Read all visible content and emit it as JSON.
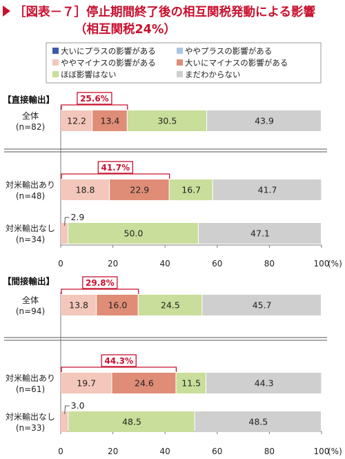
{
  "title": {
    "line1": "［図表－７］停止期間終了後の相互関税発動による影響",
    "line2": "（相互関税24%）"
  },
  "chart_data": {
    "type": "bar",
    "stacked": true,
    "orientation": "horizontal",
    "unit": "(%)",
    "xlim": [
      0,
      100
    ],
    "xticks": [
      "0",
      "20",
      "40",
      "60",
      "80",
      "100"
    ],
    "legend": [
      {
        "name": "大いにプラスの影響がある",
        "color": "#3d5aa6"
      },
      {
        "name": "ややプラスの影響がある",
        "color": "#a9c6e6"
      },
      {
        "name": "ややマイナスの影響がある",
        "color": "#f3c7bb"
      },
      {
        "name": "大いにマイナスの影響がある",
        "color": "#df8d77"
      },
      {
        "name": "ほぼ影響はない",
        "color": "#c9de9a"
      },
      {
        "name": "まだわからない",
        "color": "#cfcfcf"
      }
    ],
    "panels": [
      {
        "header": "【直接輸出】",
        "rows": [
          {
            "label1": "全体",
            "label2": "(n=82)",
            "values": [
              0,
              0,
              12.2,
              13.4,
              30.5,
              43.9
            ],
            "labels": [
              "",
              "",
              "12.2",
              "13.4",
              "30.5",
              "43.9"
            ],
            "bracket": "25.6%"
          },
          {
            "label1": "対米輸出あり",
            "label2": "(n=48)",
            "values": [
              0,
              0,
              18.8,
              22.9,
              16.7,
              41.7
            ],
            "labels": [
              "",
              "",
              "18.8",
              "22.9",
              "16.7",
              "41.7"
            ],
            "bracket": "41.7%"
          },
          {
            "label1": "対米輸出なし",
            "label2": "(n=34)",
            "values": [
              0,
              0,
              2.9,
              0,
              50.0,
              47.1
            ],
            "labels": [
              "",
              "",
              "",
              "",
              "50.0",
              "47.1"
            ],
            "callout": "2.9"
          }
        ]
      },
      {
        "header": "【間接輸出】",
        "rows": [
          {
            "label1": "全体",
            "label2": "(n=94)",
            "values": [
              0,
              0,
              13.8,
              16.0,
              24.5,
              45.7
            ],
            "labels": [
              "",
              "",
              "13.8",
              "16.0",
              "24.5",
              "45.7"
            ],
            "bracket": "29.8%"
          },
          {
            "label1": "対米輸出あり",
            "label2": "(n=61)",
            "values": [
              0,
              0,
              19.7,
              24.6,
              11.5,
              44.3
            ],
            "labels": [
              "",
              "",
              "19.7",
              "24.6",
              "11.5",
              "44.3"
            ],
            "bracket": "44.3%"
          },
          {
            "label1": "対米輸出なし",
            "label2": "(n=33)",
            "values": [
              0,
              0,
              3.0,
              0,
              48.5,
              48.5
            ],
            "labels": [
              "",
              "",
              "",
              "",
              "48.5",
              "48.5"
            ],
            "callout": "3.0"
          }
        ]
      }
    ]
  }
}
